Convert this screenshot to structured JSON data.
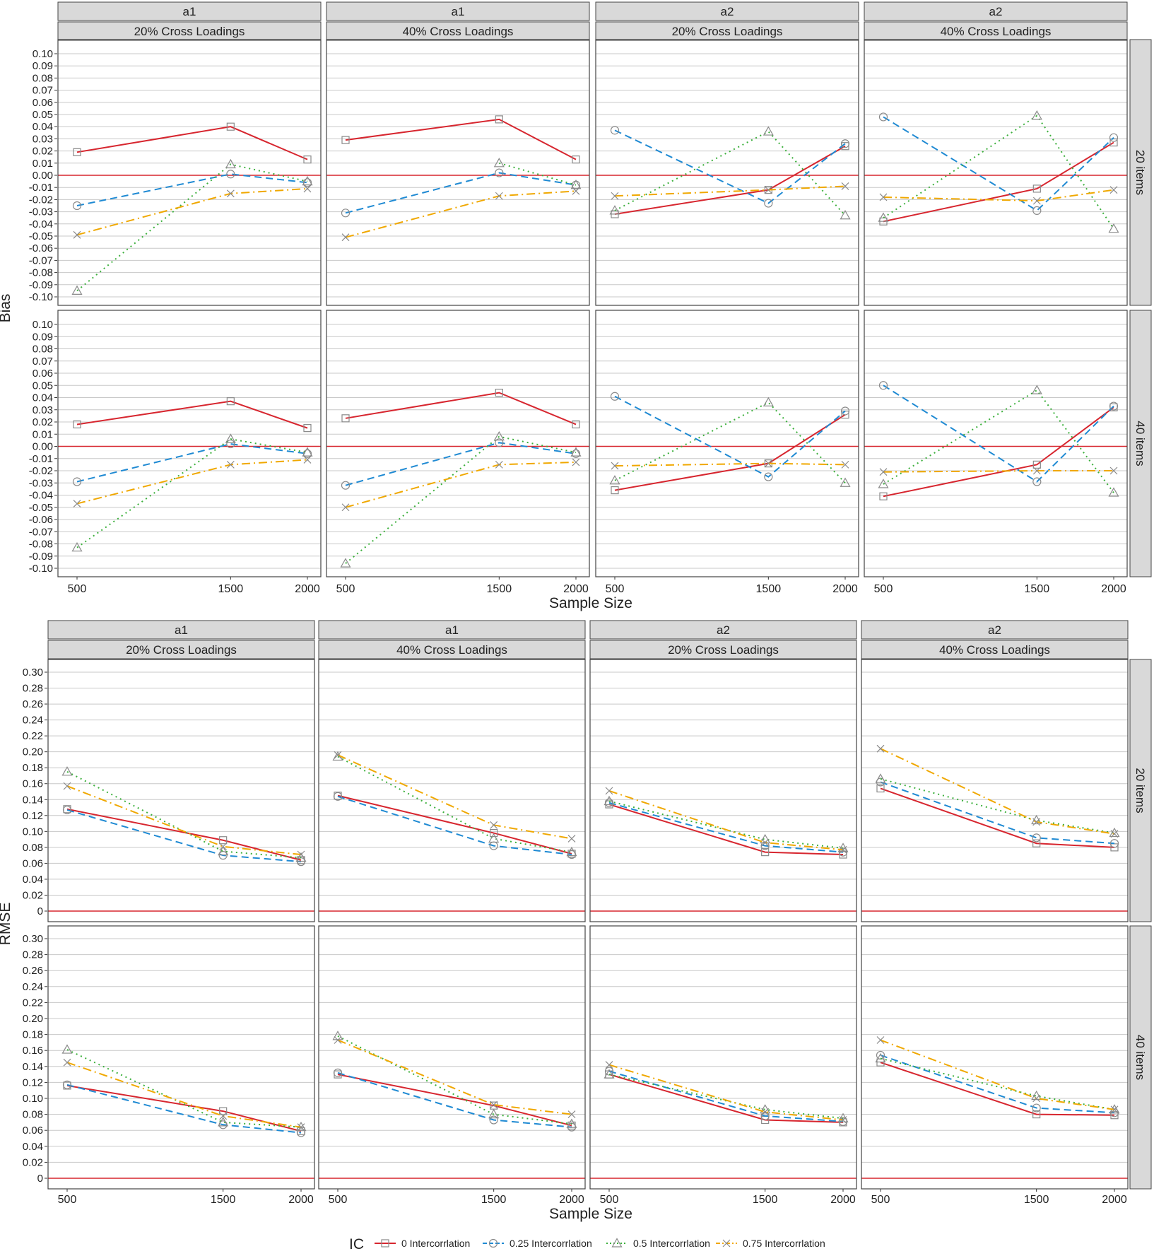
{
  "figure": {
    "x_title": "Sample Size",
    "bias_ylabel": "Bias",
    "rmse_ylabel": "RMSE",
    "legend_title": "IC"
  },
  "colors": {
    "ic0": "#d7262f",
    "ic25": "#1f8ad3",
    "ic50": "#3cb03c",
    "ic75": "#f0a800",
    "refline": "#d7262f",
    "strip": "#d9d9d9",
    "grid": "#c8c8c8",
    "marker": "#8a8a8a"
  },
  "series_meta": [
    {
      "key": "ic0",
      "name": "0 Intercorrlation",
      "marker": "square-icon",
      "dash": ""
    },
    {
      "key": "ic25",
      "name": "0.25 Intercorrlation",
      "marker": "circle-icon",
      "dash": "10,6"
    },
    {
      "key": "ic50",
      "name": "0.5 Intercorrlation",
      "marker": "triangle-icon",
      "dash": "2,5"
    },
    {
      "key": "ic75",
      "name": "0.75 Intercorrlation",
      "marker": "cross-icon",
      "dash": "12,5,2,5"
    }
  ],
  "chart_data": [
    {
      "type": "line",
      "metric": "Bias",
      "x": [
        500,
        1500,
        2000
      ],
      "x_ticks": [
        "500",
        "1500",
        "2000"
      ],
      "ylim": [
        -0.1,
        0.1
      ],
      "y_ticks": [
        "0.10",
        "0.09",
        "0.08",
        "0.07",
        "0.06",
        "0.05",
        "0.04",
        "0.03",
        "0.02",
        "0.01",
        "0.00",
        "-0.01",
        "-0.02",
        "-0.03",
        "-0.04",
        "-0.05",
        "-0.06",
        "-0.07",
        "-0.08",
        "-0.09",
        "-0.10"
      ],
      "y_tick_values": [
        0.1,
        0.09,
        0.08,
        0.07,
        0.06,
        0.05,
        0.04,
        0.03,
        0.02,
        0.01,
        0.0,
        -0.01,
        -0.02,
        -0.03,
        -0.04,
        -0.05,
        -0.06,
        -0.07,
        -0.08,
        -0.09,
        -0.1
      ],
      "reference_line": 0,
      "columns": [
        {
          "param": "a1",
          "loading": "20% Cross Loadings"
        },
        {
          "param": "a1",
          "loading": "40% Cross Loadings"
        },
        {
          "param": "a2",
          "loading": "20% Cross Loadings"
        },
        {
          "param": "a2",
          "loading": "40% Cross Loadings"
        }
      ],
      "rows": [
        "20 items",
        "40 items"
      ],
      "panels": [
        [
          {
            "ic0": [
              0.019,
              0.04,
              0.013
            ],
            "ic25": [
              -0.025,
              0.001,
              -0.006
            ],
            "ic50": [
              -0.095,
              0.009,
              -0.005
            ],
            "ic75": [
              -0.049,
              -0.015,
              -0.011
            ]
          },
          {
            "ic0": [
              0.029,
              0.046,
              0.013
            ],
            "ic25": [
              -0.031,
              0.002,
              -0.008
            ],
            "ic50": [
              null,
              0.01,
              -0.008
            ],
            "ic75": [
              -0.051,
              -0.017,
              -0.013
            ]
          },
          {
            "ic0": [
              -0.032,
              -0.012,
              0.024
            ],
            "ic25": [
              0.037,
              -0.023,
              0.026
            ],
            "ic50": [
              -0.029,
              0.036,
              -0.033
            ],
            "ic75": [
              -0.017,
              -0.012,
              -0.009
            ]
          },
          {
            "ic0": [
              -0.038,
              -0.011,
              0.027
            ],
            "ic25": [
              0.048,
              -0.029,
              0.031
            ],
            "ic50": [
              -0.035,
              0.049,
              -0.044
            ],
            "ic75": [
              -0.018,
              -0.021,
              -0.012
            ]
          }
        ],
        [
          {
            "ic0": [
              0.018,
              0.037,
              0.015
            ],
            "ic25": [
              -0.029,
              0.002,
              -0.006
            ],
            "ic50": [
              -0.083,
              0.006,
              -0.005
            ],
            "ic75": [
              -0.047,
              -0.015,
              -0.011
            ]
          },
          {
            "ic0": [
              0.023,
              0.044,
              0.018
            ],
            "ic25": [
              -0.032,
              0.003,
              -0.006
            ],
            "ic50": [
              -0.096,
              0.008,
              -0.005
            ],
            "ic75": [
              -0.05,
              -0.015,
              -0.013
            ]
          },
          {
            "ic0": [
              -0.036,
              -0.014,
              0.026
            ],
            "ic25": [
              0.041,
              -0.025,
              0.029
            ],
            "ic50": [
              -0.028,
              0.036,
              -0.03
            ],
            "ic75": [
              -0.016,
              -0.014,
              -0.015
            ]
          },
          {
            "ic0": [
              -0.041,
              -0.015,
              0.032
            ],
            "ic25": [
              0.05,
              -0.029,
              0.033
            ],
            "ic50": [
              -0.031,
              0.046,
              -0.038
            ],
            "ic75": [
              -0.021,
              -0.02,
              -0.02
            ]
          }
        ]
      ]
    },
    {
      "type": "line",
      "metric": "RMSE",
      "x": [
        500,
        1500,
        2000
      ],
      "x_ticks": [
        "500",
        "1500",
        "2000"
      ],
      "ylim": [
        0,
        0.3
      ],
      "y_ticks": [
        "0.30",
        "0.28",
        "0.26",
        "0.24",
        "0.22",
        "0.20",
        "0.18",
        "0.16",
        "0.14",
        "0.12",
        "0.10",
        "0.08",
        "0.06",
        "0.04",
        "0.02",
        "0"
      ],
      "y_tick_values": [
        0.3,
        0.28,
        0.26,
        0.24,
        0.22,
        0.2,
        0.18,
        0.16,
        0.14,
        0.12,
        0.1,
        0.08,
        0.06,
        0.04,
        0.02,
        0
      ],
      "reference_line": 0,
      "columns": [
        {
          "param": "a1",
          "loading": "20% Cross Loadings"
        },
        {
          "param": "a1",
          "loading": "40% Cross Loadings"
        },
        {
          "param": "a2",
          "loading": "20% Cross Loadings"
        },
        {
          "param": "a2",
          "loading": "40% Cross Loadings"
        }
      ],
      "rows": [
        "20 items",
        "40 items"
      ],
      "panels": [
        [
          {
            "ic0": [
              0.128,
              0.089,
              0.064
            ],
            "ic25": [
              0.127,
              0.07,
              0.062
            ],
            "ic50": [
              0.175,
              0.075,
              0.067
            ],
            "ic75": [
              0.157,
              0.081,
              0.071
            ]
          },
          {
            "ic0": [
              0.145,
              0.098,
              0.072
            ],
            "ic25": [
              0.144,
              0.082,
              0.071
            ],
            "ic50": [
              0.194,
              0.091,
              0.074
            ],
            "ic75": [
              0.196,
              0.108,
              0.091
            ]
          },
          {
            "ic0": [
              0.134,
              0.074,
              0.071
            ],
            "ic25": [
              0.136,
              0.082,
              0.074
            ],
            "ic50": [
              0.138,
              0.09,
              0.079
            ],
            "ic75": [
              0.151,
              0.086,
              0.077
            ]
          },
          {
            "ic0": [
              0.154,
              0.085,
              0.08
            ],
            "ic25": [
              0.162,
              0.092,
              0.085
            ],
            "ic50": [
              0.166,
              0.114,
              0.098
            ],
            "ic75": [
              0.204,
              0.112,
              0.097
            ]
          }
        ],
        [
          {
            "ic0": [
              0.116,
              0.084,
              0.059
            ],
            "ic25": [
              0.117,
              0.067,
              0.057
            ],
            "ic50": [
              0.161,
              0.07,
              0.064
            ],
            "ic75": [
              0.145,
              0.078,
              0.064
            ]
          },
          {
            "ic0": [
              0.13,
              0.091,
              0.066
            ],
            "ic25": [
              0.132,
              0.073,
              0.064
            ],
            "ic50": [
              0.178,
              0.08,
              0.068
            ],
            "ic75": [
              0.173,
              0.092,
              0.08
            ]
          },
          {
            "ic0": [
              0.13,
              0.073,
              0.07
            ],
            "ic25": [
              0.134,
              0.078,
              0.071
            ],
            "ic50": [
              0.13,
              0.086,
              0.075
            ],
            "ic75": [
              0.142,
              0.083,
              0.073
            ]
          },
          {
            "ic0": [
              0.145,
              0.08,
              0.079
            ],
            "ic25": [
              0.154,
              0.088,
              0.082
            ],
            "ic50": [
              0.15,
              0.103,
              0.086
            ],
            "ic75": [
              0.173,
              0.1,
              0.086
            ]
          }
        ]
      ]
    }
  ]
}
